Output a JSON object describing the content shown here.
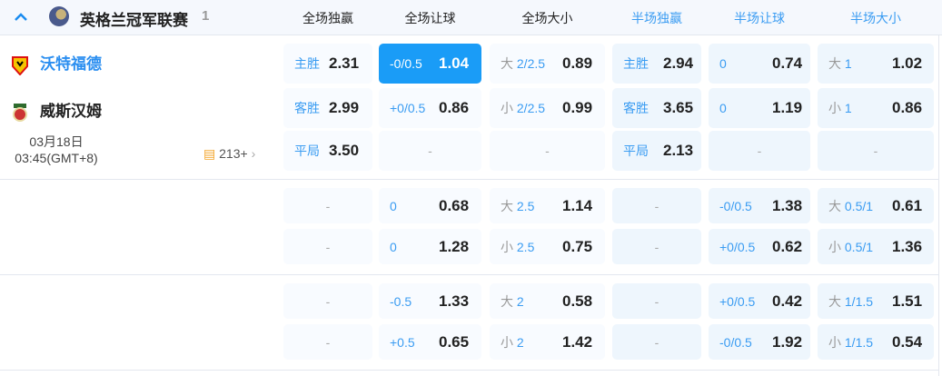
{
  "header": {
    "league": "英格兰冠军联赛",
    "count": "1",
    "columns": [
      "全场独赢",
      "全场让球",
      "全场大小",
      "半场独赢",
      "半场让球",
      "半场大小"
    ]
  },
  "match": {
    "home": "沃特福德",
    "away": "威斯汉姆",
    "date": "03月18日",
    "time": "03:45(GMT+8)",
    "more": "213+"
  },
  "colors": {
    "accent": "#1a9cf7",
    "half_bg": "#eef6fd",
    "cell_bg": "#f8fbff"
  },
  "groups": [
    {
      "rows": [
        [
          {
            "tag": "",
            "ln": "主胜",
            "val": "2.31"
          },
          {
            "ln": "-0/0.5",
            "val": "1.04",
            "selected": true
          },
          {
            "tag": "大",
            "ln": "2/2.5",
            "val": "0.89"
          },
          {
            "ln": "主胜",
            "val": "2.94"
          },
          {
            "ln": "0",
            "val": "0.74"
          },
          {
            "tag": "大",
            "ln": "1",
            "val": "1.02"
          }
        ],
        [
          {
            "ln": "客胜",
            "val": "2.99"
          },
          {
            "ln": "+0/0.5",
            "val": "0.86"
          },
          {
            "tag": "小",
            "ln": "2/2.5",
            "val": "0.99"
          },
          {
            "ln": "客胜",
            "val": "3.65"
          },
          {
            "ln": "0",
            "val": "1.19"
          },
          {
            "tag": "小",
            "ln": "1",
            "val": "0.86"
          }
        ],
        [
          {
            "ln": "平局",
            "val": "3.50"
          },
          {
            "dash": "-"
          },
          {
            "dash": "-"
          },
          {
            "ln": "平局",
            "val": "2.13"
          },
          {
            "dash": "-"
          },
          {
            "dash": "-"
          }
        ]
      ]
    },
    {
      "rows": [
        [
          {
            "dash": "-"
          },
          {
            "ln": "0",
            "val": "0.68"
          },
          {
            "tag": "大",
            "ln": "2.5",
            "val": "1.14"
          },
          {
            "dash": "-"
          },
          {
            "ln": "-0/0.5",
            "val": "1.38"
          },
          {
            "tag": "大",
            "ln": "0.5/1",
            "val": "0.61"
          }
        ],
        [
          {
            "dash": "-"
          },
          {
            "ln": "0",
            "val": "1.28"
          },
          {
            "tag": "小",
            "ln": "2.5",
            "val": "0.75"
          },
          {
            "dash": "-"
          },
          {
            "ln": "+0/0.5",
            "val": "0.62"
          },
          {
            "tag": "小",
            "ln": "0.5/1",
            "val": "1.36"
          }
        ]
      ]
    },
    {
      "rows": [
        [
          {
            "dash": "-"
          },
          {
            "ln": "-0.5",
            "val": "1.33"
          },
          {
            "tag": "大",
            "ln": "2",
            "val": "0.58"
          },
          {
            "dash": "-"
          },
          {
            "ln": "+0/0.5",
            "val": "0.42"
          },
          {
            "tag": "大",
            "ln": "1/1.5",
            "val": "1.51"
          }
        ],
        [
          {
            "dash": "-"
          },
          {
            "ln": "+0.5",
            "val": "0.65"
          },
          {
            "tag": "小",
            "ln": "2",
            "val": "1.42"
          },
          {
            "dash": "-"
          },
          {
            "ln": "-0/0.5",
            "val": "1.92"
          },
          {
            "tag": "小",
            "ln": "1/1.5",
            "val": "0.54"
          }
        ]
      ]
    }
  ]
}
